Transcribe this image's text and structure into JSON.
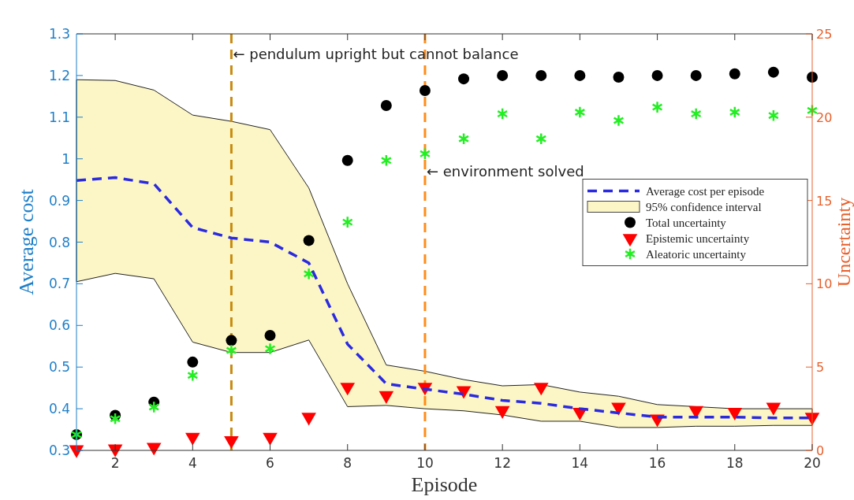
{
  "chart_data": {
    "type": "line",
    "xlabel": "Episode",
    "ylabel": "Average cost",
    "y2label": "Uncertainty",
    "x": [
      1,
      2,
      3,
      4,
      5,
      6,
      7,
      8,
      9,
      10,
      11,
      12,
      13,
      14,
      15,
      16,
      17,
      18,
      19,
      20
    ],
    "xlim": [
      1,
      20
    ],
    "xticks": [
      2,
      4,
      6,
      8,
      10,
      12,
      14,
      16,
      18,
      20
    ],
    "ylim": [
      0.3,
      1.3
    ],
    "yticks": [
      0.3,
      0.4,
      0.5,
      0.6,
      0.7,
      0.8,
      0.9,
      1,
      1.1,
      1.2,
      1.3
    ],
    "y2lim": [
      0,
      25
    ],
    "y2ticks": [
      0,
      5,
      10,
      15,
      20,
      25
    ],
    "legend": "right",
    "grid": false,
    "series": [
      {
        "type": "line",
        "name": "Average cost per episode",
        "color": "#2a2ae0",
        "line_style": "dashed",
        "marker": "none",
        "values": [
          0.948,
          0.955,
          0.94,
          0.835,
          0.81,
          0.8,
          0.75,
          0.555,
          0.46,
          0.447,
          0.435,
          0.42,
          0.413,
          0.4,
          0.39,
          0.38,
          0.38,
          0.38,
          0.378,
          0.378
        ]
      },
      {
        "type": "area",
        "name": "95% confidence interval",
        "color": "#fcf6c6",
        "values": [
          null,
          null,
          null,
          null,
          null,
          null,
          null,
          null,
          null,
          null,
          null,
          null,
          null,
          null,
          null,
          null,
          null,
          null,
          null,
          null
        ],
        "lower": [
          0.705,
          0.725,
          0.712,
          0.56,
          0.535,
          0.535,
          0.565,
          0.405,
          0.408,
          0.4,
          0.395,
          0.385,
          0.37,
          0.37,
          0.355,
          0.355,
          0.358,
          0.358,
          0.36,
          0.36
        ],
        "upper": [
          1.19,
          1.188,
          1.165,
          1.105,
          1.09,
          1.07,
          0.93,
          0.7,
          0.505,
          0.49,
          0.47,
          0.455,
          0.458,
          0.44,
          0.43,
          0.41,
          0.405,
          0.4,
          0.4,
          0.4
        ]
      },
      {
        "type": "scatter",
        "name": "Total uncertainty",
        "color": "#000000",
        "marker": "circle",
        "axis": "y2",
        "values": [
          0.95,
          2.1,
          2.9,
          5.3,
          6.6,
          6.9,
          12.6,
          17.4,
          20.7,
          21.6,
          22.3,
          22.5,
          22.5,
          22.5,
          22.4,
          22.5,
          22.5,
          22.6,
          22.7,
          22.4
        ]
      },
      {
        "type": "scatter",
        "name": "Epistemic uncertainty",
        "color": "#ff0000",
        "marker": "triangle",
        "axis": "y2",
        "values": [
          0.05,
          0.1,
          0.2,
          0.8,
          0.6,
          0.8,
          2.0,
          3.8,
          3.3,
          3.8,
          3.6,
          2.4,
          3.8,
          2.3,
          2.6,
          1.9,
          2.4,
          2.3,
          2.6,
          2.0
        ]
      },
      {
        "type": "scatter",
        "name": "Aleatoric uncertainty",
        "color": "#22ee22",
        "marker": "cross",
        "axis": "y2",
        "values": [
          0.95,
          1.9,
          2.6,
          4.5,
          6.0,
          6.1,
          10.6,
          13.7,
          17.4,
          17.8,
          18.7,
          20.2,
          18.7,
          20.3,
          19.8,
          20.6,
          20.2,
          20.3,
          20.1,
          20.4
        ]
      }
    ],
    "ref_lines": [
      {
        "axis": "x",
        "value": 5,
        "color": "#c88a10",
        "line_style": "dashed"
      },
      {
        "axis": "x",
        "value": 10,
        "color": "#ff8c1a",
        "line_style": "dashed"
      }
    ],
    "annotations": [
      {
        "text": "← pendulum upright but cannot balance",
        "x": 5,
        "y": 1.25
      },
      {
        "text": "← environment solved",
        "x": 10,
        "y": 0.97
      }
    ]
  }
}
